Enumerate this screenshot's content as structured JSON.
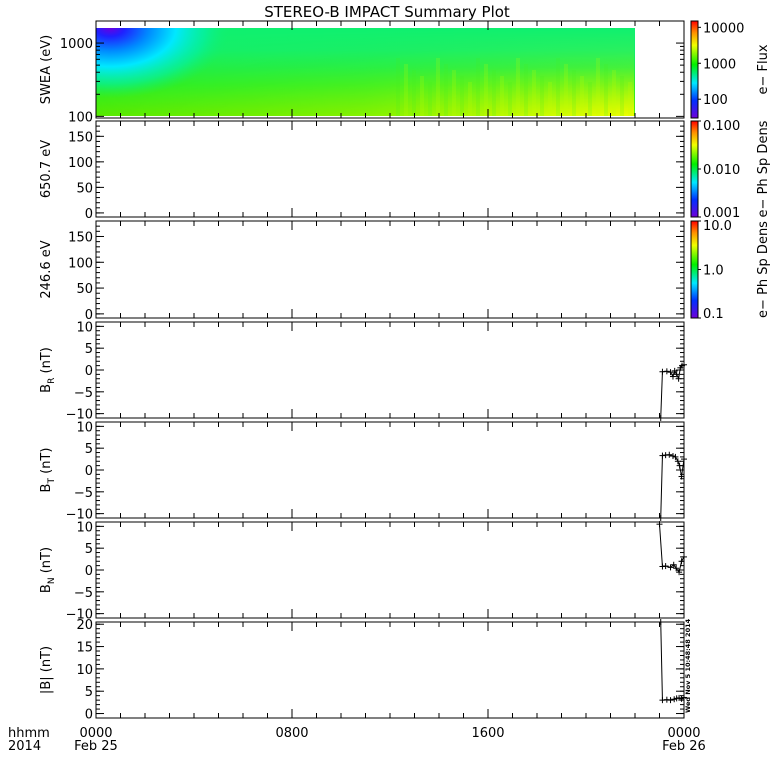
{
  "title": "STEREO-B IMPACT Summary Plot",
  "timestamp_vertical": "Wed Nov  5 10:48:48 2014",
  "x_axis": {
    "row1_label": "hhmm",
    "row2_label": "2014",
    "ticks": [
      {
        "hour": 0,
        "time": "0000",
        "date": "Feb 25"
      },
      {
        "hour": 8,
        "time": "0800",
        "date": ""
      },
      {
        "hour": 16,
        "time": "1600",
        "date": ""
      },
      {
        "hour": 24,
        "time": "0000",
        "date": "Feb 26"
      }
    ]
  },
  "chart_data": [
    {
      "type": "heatmap",
      "ylabel": "SWEA (eV)",
      "yscale": "log",
      "ylim": [
        95,
        2000
      ],
      "yticks": [
        {
          "v": 100,
          "label": "100"
        },
        {
          "v": 1000,
          "label": "1000"
        }
      ],
      "data_end_hour": 22.0,
      "colorbar": {
        "label": "e− Flux",
        "scale": "log",
        "range": [
          30,
          15000
        ],
        "ticks": [
          {
            "v": 10000,
            "label": "10000"
          },
          {
            "v": 1000,
            "label": "1000"
          },
          {
            "v": 100,
            "label": "100"
          }
        ]
      }
    },
    {
      "type": "line",
      "ylabel": "650.7 eV",
      "ylim": [
        -8,
        180
      ],
      "yticks": [
        {
          "v": 0,
          "label": "0"
        },
        {
          "v": 50,
          "label": "50"
        },
        {
          "v": 100,
          "label": "100"
        },
        {
          "v": 150,
          "label": "150"
        }
      ],
      "series": [],
      "colorbar": {
        "label": "e− Ph Sp Dens",
        "scale": "log",
        "range": [
          0.001,
          0.1
        ],
        "ticks": [
          {
            "v": 0.1,
            "label": "0.100"
          },
          {
            "v": 0.01,
            "label": "0.010"
          },
          {
            "v": 0.001,
            "label": "0.001"
          }
        ]
      }
    },
    {
      "type": "line",
      "ylabel": "246.6 eV",
      "ylim": [
        -8,
        180
      ],
      "yticks": [
        {
          "v": 0,
          "label": "0"
        },
        {
          "v": 50,
          "label": "50"
        },
        {
          "v": 100,
          "label": "100"
        },
        {
          "v": 150,
          "label": "150"
        }
      ],
      "series": [],
      "colorbar": {
        "label": "e− Ph Sp Dens",
        "scale": "log",
        "range": [
          0.1,
          10
        ],
        "ticks": [
          {
            "v": 10,
            "label": "10.0"
          },
          {
            "v": 1,
            "label": "1.0"
          },
          {
            "v": 0.1,
            "label": "0.1"
          }
        ]
      }
    },
    {
      "type": "line",
      "ylabel": "B",
      "ysub": "R",
      "yunit": " (nT)",
      "ylim": [
        -11,
        11
      ],
      "yticks": [
        {
          "v": -10,
          "label": "−10"
        },
        {
          "v": -5,
          "label": "−5"
        },
        {
          "v": 0,
          "label": "0"
        },
        {
          "v": 5,
          "label": "5"
        },
        {
          "v": 10,
          "label": "10"
        }
      ],
      "series": [
        {
          "x": [
            23.05,
            23.12,
            23.3,
            23.45,
            23.55,
            23.62,
            23.7,
            23.78,
            23.85,
            23.92,
            24.0
          ],
          "y": [
            -11,
            -0.4,
            -0.3,
            -0.5,
            -1.5,
            -0.2,
            -1.0,
            -2.0,
            0.5,
            1.0,
            1.2
          ]
        }
      ]
    },
    {
      "type": "line",
      "ylabel": "B",
      "ysub": "T",
      "yunit": " (nT)",
      "ylim": [
        -11,
        11
      ],
      "yticks": [
        {
          "v": -10,
          "label": "−10"
        },
        {
          "v": -5,
          "label": "−5"
        },
        {
          "v": 0,
          "label": "0"
        },
        {
          "v": 5,
          "label": "5"
        },
        {
          "v": 10,
          "label": "10"
        }
      ],
      "series": [
        {
          "x": [
            23.05,
            23.12,
            23.25,
            23.4,
            23.55,
            23.65,
            23.75,
            23.82,
            23.9,
            24.0
          ],
          "y": [
            -11,
            3.3,
            3.4,
            3.5,
            3.2,
            3.0,
            2.0,
            1.0,
            -1.5,
            2.5
          ]
        }
      ]
    },
    {
      "type": "line",
      "ylabel": "B",
      "ysub": "N",
      "yunit": " (nT)",
      "ylim": [
        -11,
        11
      ],
      "yticks": [
        {
          "v": -10,
          "label": "−10"
        },
        {
          "v": -5,
          "label": "−5"
        },
        {
          "v": 0,
          "label": "0"
        },
        {
          "v": 5,
          "label": "5"
        },
        {
          "v": 10,
          "label": "10"
        }
      ],
      "series": [
        {
          "x": [
            23.0,
            23.12,
            23.25,
            23.45,
            23.58,
            23.68,
            23.8,
            23.9,
            24.0
          ],
          "y": [
            10.5,
            0.8,
            0.9,
            0.6,
            1.2,
            0.4,
            -0.5,
            2.0,
            3.0
          ]
        }
      ]
    },
    {
      "type": "line",
      "ylabel": "|B| (nT)",
      "ylim": [
        -1,
        20.5
      ],
      "yticks": [
        {
          "v": 0,
          "label": "0"
        },
        {
          "v": 5,
          "label": "5"
        },
        {
          "v": 10,
          "label": "10"
        },
        {
          "v": 15,
          "label": "15"
        },
        {
          "v": 20,
          "label": "20"
        }
      ],
      "series": [
        {
          "x": [
            23.05,
            23.12,
            23.3,
            23.45,
            23.6,
            23.7,
            23.8,
            23.9,
            24.0
          ],
          "y": [
            20.5,
            3.0,
            3.1,
            3.0,
            3.2,
            3.4,
            3.5,
            3.3,
            3.6
          ]
        }
      ]
    }
  ]
}
